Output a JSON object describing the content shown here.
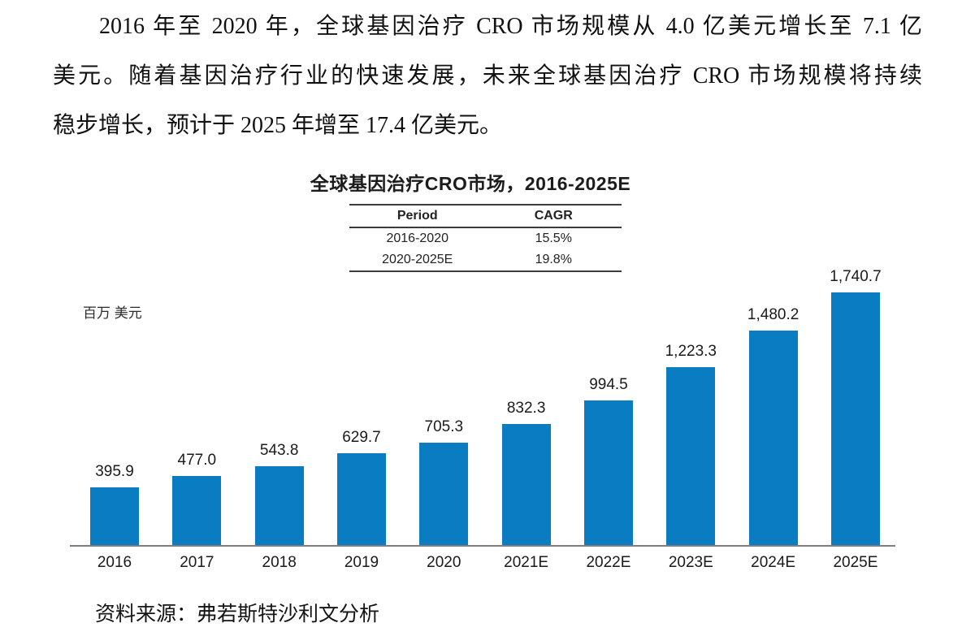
{
  "page": {
    "paragraph_lines": [
      "2016 年至 2020 年，全球基因治疗 CRO 市场规模从 4.0 亿美元增长至 7.1 亿",
      "美元。随着基因治疗行业的快速发展，未来全球基因治疗 CRO 市场规模将持续",
      "稳步增长，预计于 2025 年增至 17.4 亿美元。"
    ],
    "source_note": "资料来源：弗若斯特沙利文分析"
  },
  "chart_data": {
    "type": "bar",
    "title": "全球基因治疗CRO市场，2016-2025E",
    "xlabel": "",
    "ylabel": "百万 美元",
    "categories": [
      "2016",
      "2017",
      "2018",
      "2019",
      "2020",
      "2021E",
      "2022E",
      "2023E",
      "2024E",
      "2025E"
    ],
    "values": [
      395.9,
      477.0,
      543.8,
      629.7,
      705.3,
      832.3,
      994.5,
      1223.3,
      1480.2,
      1740.7
    ],
    "value_labels": [
      "395.9",
      "477.0",
      "543.8",
      "629.7",
      "705.3",
      "832.3",
      "994.5",
      "1,223.3",
      "1,480.2",
      "1,740.7"
    ],
    "bar_color": "#0a7dc2",
    "axis_color": "#7f7f7f",
    "ylim": [
      0,
      1870
    ],
    "grid": "off",
    "legend": "none",
    "cagr_table": {
      "headers": [
        "Period",
        "CAGR"
      ],
      "rows": [
        [
          "2016-2020",
          "15.5%"
        ],
        [
          "2020-2025E",
          "19.8%"
        ]
      ]
    }
  }
}
